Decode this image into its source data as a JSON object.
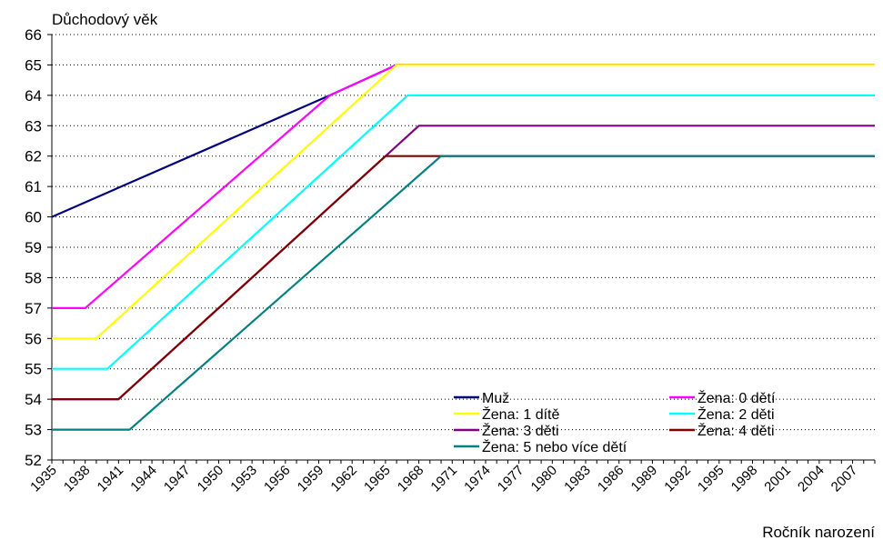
{
  "chart_data": {
    "type": "line",
    "ylabel": "Důchodový věk",
    "xlabel": "Ročník narození",
    "ylim": [
      52,
      66
    ],
    "xlim": [
      1935,
      2009
    ],
    "yticks": [
      52,
      53,
      54,
      55,
      56,
      57,
      58,
      59,
      60,
      61,
      62,
      63,
      64,
      65,
      66
    ],
    "xticks": [
      1935,
      1938,
      1941,
      1944,
      1947,
      1950,
      1953,
      1956,
      1959,
      1962,
      1965,
      1968,
      1971,
      1974,
      1977,
      1980,
      1983,
      1986,
      1989,
      1992,
      1995,
      1998,
      2001,
      2004,
      2007
    ],
    "grid": "horizontal dotted",
    "legend": "bottom-right inside plot, two columns",
    "series": [
      {
        "name": "Muž",
        "color": "#000080",
        "points": [
          [
            1935,
            60
          ],
          [
            1960,
            64
          ],
          [
            1966,
            65
          ],
          [
            2009,
            65
          ]
        ]
      },
      {
        "name": "Žena: 0 dětí",
        "color": "#ff00ff",
        "points": [
          [
            1935,
            57
          ],
          [
            1938,
            57
          ],
          [
            1960,
            64
          ],
          [
            1966,
            65
          ],
          [
            2009,
            65
          ]
        ]
      },
      {
        "name": "Žena: 1 dítě",
        "color": "#ffff00",
        "points": [
          [
            1935,
            56
          ],
          [
            1939,
            56
          ],
          [
            1966,
            65
          ],
          [
            2009,
            65
          ]
        ]
      },
      {
        "name": "Žena: 2 děti",
        "color": "#00ffff",
        "points": [
          [
            1935,
            55
          ],
          [
            1940,
            55
          ],
          [
            1967,
            64
          ],
          [
            2009,
            64
          ]
        ]
      },
      {
        "name": "Žena: 3 děti",
        "color": "#800080",
        "points": [
          [
            1935,
            54
          ],
          [
            1941,
            54
          ],
          [
            1968,
            63
          ],
          [
            2009,
            63
          ]
        ]
      },
      {
        "name": "Žena: 4 děti",
        "color": "#800000",
        "points": [
          [
            1935,
            54
          ],
          [
            1941,
            54
          ],
          [
            1965,
            62
          ],
          [
            2009,
            62
          ]
        ]
      },
      {
        "name": "Žena: 5 nebo více dětí",
        "color": "#008080",
        "points": [
          [
            1935,
            53
          ],
          [
            1942,
            53
          ],
          [
            1970,
            62
          ],
          [
            2009,
            62
          ]
        ]
      }
    ]
  }
}
